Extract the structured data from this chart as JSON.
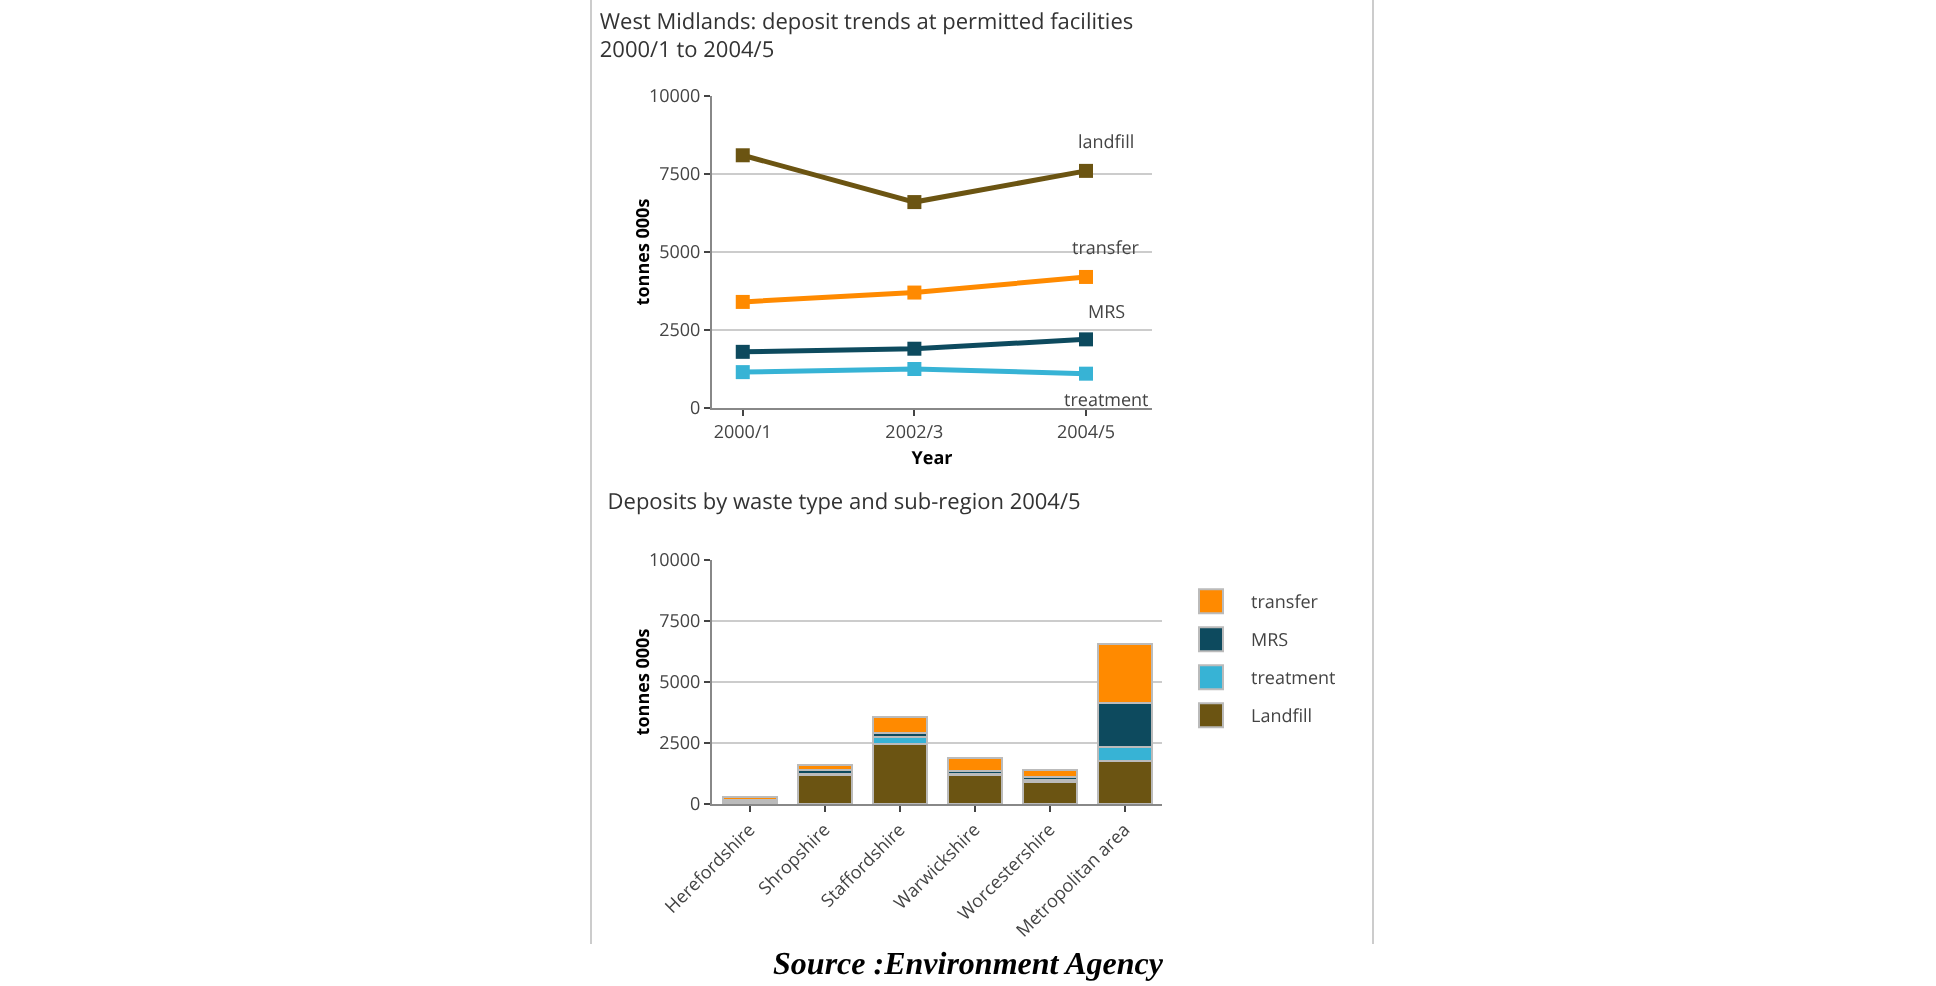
{
  "chart_data": [
    {
      "type": "line",
      "title": "West Midlands: deposit trends at permitted facilities\n2000/1 to 2004/5",
      "xlabel": "Year",
      "ylabel": "tonnes 000s",
      "categories": [
        "2000/1",
        "2002/3",
        "2004/5"
      ],
      "series": [
        {
          "name": "landfill",
          "color": "#6b5412",
          "values": [
            8100,
            6600,
            7600
          ]
        },
        {
          "name": "transfer",
          "color": "#ff8a00",
          "values": [
            3400,
            3700,
            4200
          ]
        },
        {
          "name": "MRS",
          "color": "#0d4a5e",
          "values": [
            1800,
            1900,
            2200
          ]
        },
        {
          "name": "treatment",
          "color": "#37b3d5",
          "values": [
            1150,
            1250,
            1100
          ]
        }
      ],
      "ylim": [
        0,
        10000
      ],
      "yticks": [
        0,
        2500,
        5000,
        7500,
        10000
      ],
      "grid": "y",
      "marker": "square",
      "legend": false
    },
    {
      "type": "bar",
      "stacked": true,
      "title": "Deposits by waste type and sub-region 2004/5",
      "ylabel": "tonnes 000s",
      "categories": [
        "Herefordshire",
        "Shropshire",
        "Staffordshire",
        "Warwickshire",
        "Worcestershire",
        "Metropolitan area"
      ],
      "series": [
        {
          "name": "Landfill",
          "color": "#6b5412",
          "values": [
            50,
            1200,
            2450,
            1200,
            900,
            1750
          ]
        },
        {
          "name": "treatment",
          "color": "#37b3d5",
          "values": [
            50,
            50,
            300,
            50,
            100,
            600
          ]
        },
        {
          "name": "MRS",
          "color": "#0d4a5e",
          "values": [
            50,
            150,
            150,
            100,
            100,
            1800
          ]
        },
        {
          "name": "transfer",
          "color": "#ff8a00",
          "values": [
            150,
            200,
            650,
            550,
            300,
            2400
          ]
        }
      ],
      "ylim": [
        0,
        10000
      ],
      "yticks": [
        0,
        2500,
        5000,
        7500,
        10000
      ],
      "grid": "y",
      "legend": "right",
      "annotations": [
        "Source :Environment Agency"
      ]
    }
  ]
}
